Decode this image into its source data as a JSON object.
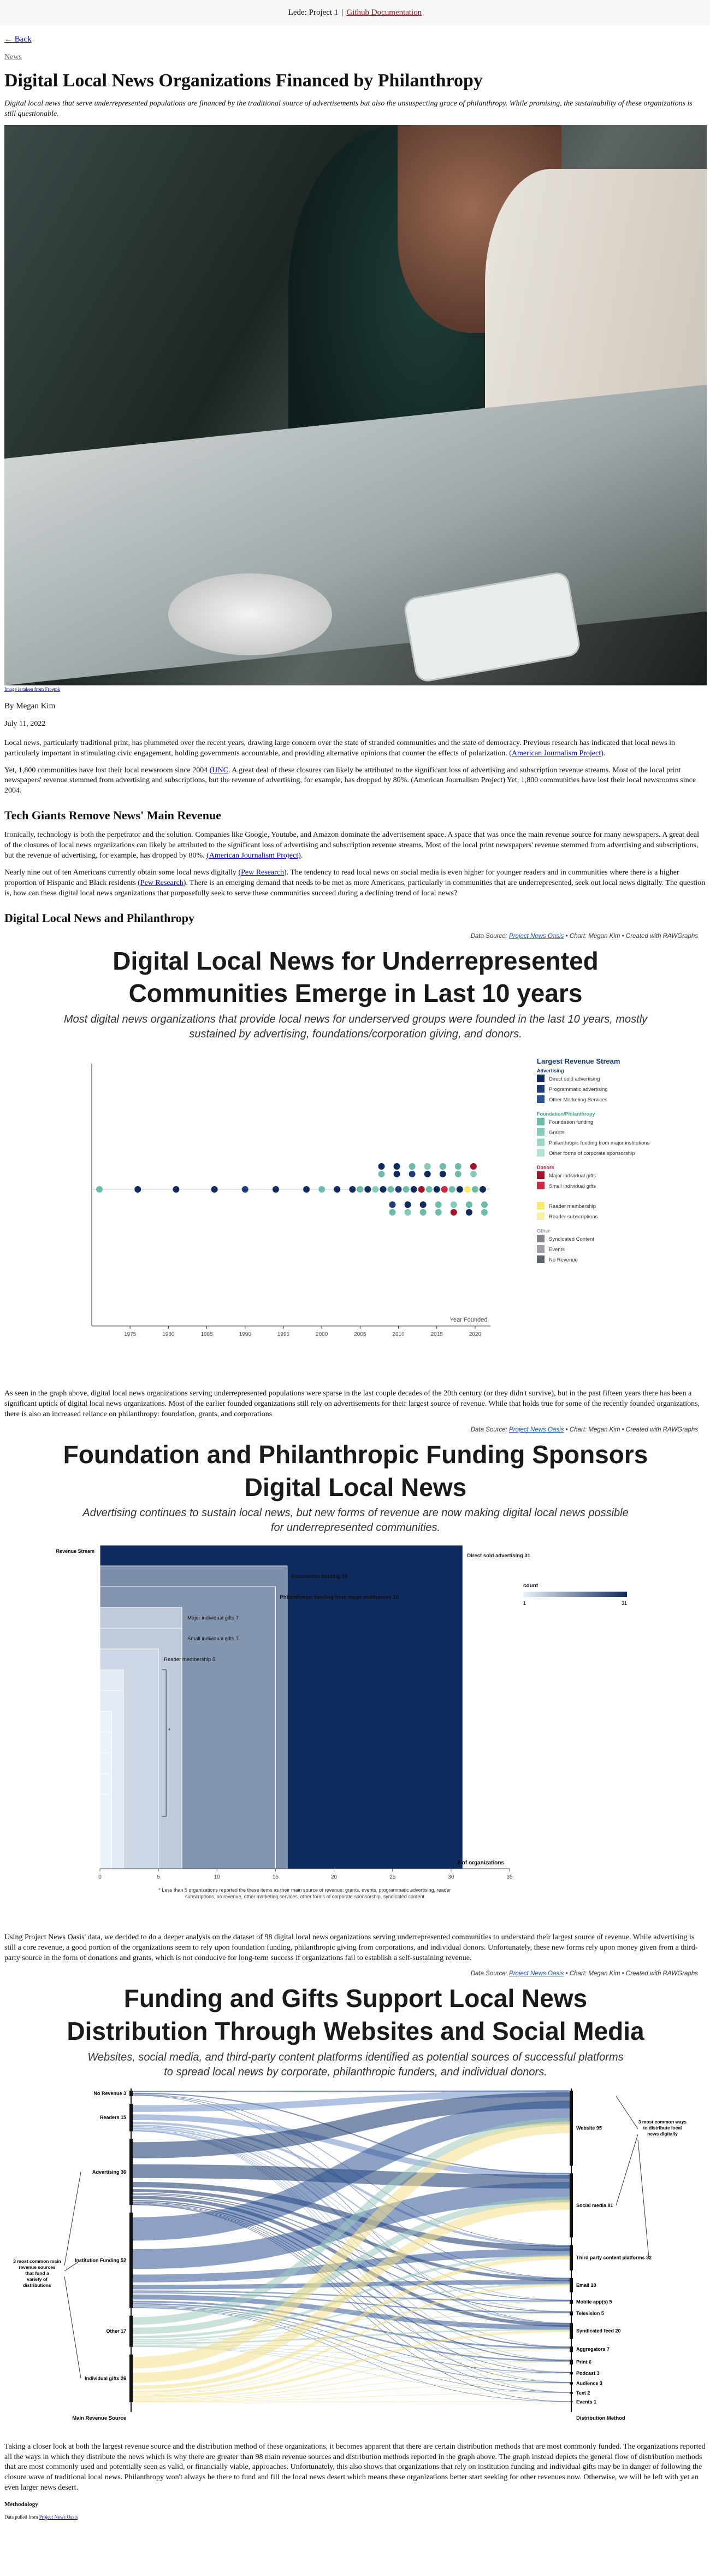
{
  "nav": {
    "brand": "Lede: Project 1",
    "separator": "|",
    "link": "Github Documentation"
  },
  "back": "← Back",
  "kicker": "News",
  "title": "Digital Local News Organizations Financed by Philanthropy",
  "dek": "Digital local news that serve underrepresented populations are financed by the traditional source of advertisements but also the unsuspecting grace of philanthropy. While promising, the sustainability of these organizations is still questionable.",
  "photo_credit": "Image is taken from Freepik",
  "byline": "By Megan Kim",
  "date": "July 11, 2022",
  "paragraphs": {
    "p1": "Local news, particularly traditional print, has plummeted over the recent years, drawing large concern over the state of stranded communities and the state of democracy. Previous research has indicated that local news in particularly important in stimulating civic engagement, holding governments accountable, and providing alternative opinions that counter the effects of polarization.",
    "p1_link": "(American Journalism Project)",
    "p2a": "Yet, 1,800 communities have lost their local newsroom since 2004",
    "p2_link": "(UNC",
    "p2b": ". A great deal of these closures can likely be attributed to the significant loss of advertising and subscription revenue streams. Most of the local print newspapers' revenue stemmed from advertising and subscriptions, but the revenue of advertising, for example, has dropped by 80%. (American Journalism Project) Yet, 1,800 communities have lost their local newsrooms since 2004.",
    "h_tech": "Tech Giants Remove News' Main Revenue",
    "p3": "Ironically, technology is both the perpetrator and the solution. Companies like Google, Youtube, and Amazon dominate the advertisement space. A space that was once the main revenue source for many newspapers. A great deal of the closures of local news organizations can likely be attributed to the significant loss of advertising and subscription revenue streams. Most of the local print newspapers' revenue stemmed from advertising and subscriptions, but the revenue of advertising, for example, has dropped by 80%.",
    "p3_link": "(American Journalism Project)",
    "p4a": "Nearly nine out of ten Americans currently obtain some local news digitally",
    "p4_link1": "(Pew Research",
    "p4b": "). The tendency to read local news on social media is even higher for younger readers and in communities where there is a higher proportion of Hispanic and Black residents",
    "p4_link2": "(Pew Research",
    "p4c": "). There is an emerging demand that needs to be met as more Americans, particularly in communities that are underrepresented, seek out local news digitally. The question is, how can these digital local news organizations that purposefully seek to serve these communities succeed during a declining trend of local news?",
    "h_digital": "Digital Local News and Philanthropy",
    "p5": "As seen in the graph above, digital local news organizations serving underrepresented populations were sparse in the last couple decades of the 20th century (or they didn't survive), but in the past fifteen years there has been a significant uptick of digital local news organizations. Most of the earlier founded organizations still rely on advertisements for their largest source of revenue. While that holds true for some of the recently founded organizations, there is also an increased reliance on philanthropy: foundation, grants, and corporations",
    "p6": "Using Project News Oasis' data, we decided to do a deeper analysis on the dataset of 98 digital local news organizations serving underrepresented communities to understand their largest source of revenue. While advertising is still a core revenue, a good portion of the organizations seem to rely upon foundation funding, philanthropic giving from corporations, and individual donors. Unfortunately, these new forms rely upon money given from a third-party source in the form of donations and grants, which is not conducive for long-term success if organizations fail to establish a self-sustaining revenue.",
    "p7": "Taking a closer look at both the largest revenue source and the distribution method of these organizations, it becomes apparent that there are certain distribution methods that are most commonly funded. The organizations reported all the ways in which they distribute the news which is why there are greater than 98 main revenue sources and distribution methods reported in the graph above. The graph instead depicts the general flow of distribution methods that are most commonly used and potentially seen as valid, or financially viable, approaches. Unfortunately, this also shows that organizations that rely on institution funding and individual gifts may be in danger of following the closure wave of traditional local news. Philanthropy won't always be there to fund and fill the local news desert which means these organizations better start seeking for other revenues now. Otherwise, we will be left with yet an even larger news desert.",
    "methodology": "Methodology",
    "methodology_note": "Data pulled from",
    "methodology_link": "Project News Oasis"
  },
  "source_line": {
    "prefix": "Data Source:",
    "link": "Project News Oasis",
    "suffix": "• Chart: Megan Kim • Created with RAWGraphs"
  },
  "colors": {
    "navy": "#14336b",
    "blue": "#3f6fb5",
    "teal": "#8fcfc0",
    "red": "#c0172f",
    "yellow": "#f6ec7a",
    "grey": "#9aa0a6"
  },
  "chart_data": [
    {
      "type": "scatter",
      "title": "Digital Local News for Underrepresented Communities Emerge in Last 10 years",
      "subtitle": "Most digital news organizations that provide local news for underserved groups were founded in the last 10 years, mostly sustained by advertising, foundations/corporation giving, and donors.",
      "xlabel": "Year Founded",
      "xlim": [
        1970,
        2022
      ],
      "x_ticks": [
        1975,
        1980,
        1985,
        1990,
        1995,
        2000,
        2005,
        2010,
        2015,
        2020
      ],
      "legend_title": "Largest Revenue Stream",
      "legend_groups": [
        {
          "name": "Advertising",
          "items": [
            {
              "label": "Direct sold advertising",
              "color": "#0f2a5c"
            },
            {
              "label": "Programmatic advertising",
              "color": "#1e3d7a"
            },
            {
              "label": "Other Marketing Services",
              "color": "#2d5394"
            }
          ]
        },
        {
          "name": "Foundation/Philanthropy",
          "items": [
            {
              "label": "Foundation funding",
              "color": "#6dbca9"
            },
            {
              "label": "Grants",
              "color": "#86cbb9"
            },
            {
              "label": "Philanthropic funding from major institutions",
              "color": "#9ed7c8"
            },
            {
              "label": "Other forms of corporate sponsorship",
              "color": "#b5e2d6"
            }
          ]
        },
        {
          "name": "Donors",
          "items": [
            {
              "label": "Major individual gifts",
              "color": "#a3142a"
            },
            {
              "label": "Small individual gifts",
              "color": "#c9283f"
            }
          ]
        },
        {
          "name": "",
          "items": [
            {
              "label": "Reader membership",
              "color": "#f5ea6c"
            },
            {
              "label": "Reader subscriptions",
              "color": "#f8f0a2"
            }
          ]
        },
        {
          "name": "Other",
          "items": [
            {
              "label": "Syndicated Content",
              "color": "#7d8389"
            },
            {
              "label": "Events",
              "color": "#9aa0a6"
            },
            {
              "label": "No Revenue",
              "color": "#5d636a"
            }
          ]
        }
      ],
      "points": [
        {
          "x": 1971,
          "g": "Foundation funding"
        },
        {
          "x": 1976,
          "g": "Direct sold advertising"
        },
        {
          "x": 1981,
          "g": "Direct sold advertising"
        },
        {
          "x": 1986,
          "g": "Direct sold advertising"
        },
        {
          "x": 1990,
          "g": "Programmatic advertising"
        },
        {
          "x": 1994,
          "g": "Direct sold advertising"
        },
        {
          "x": 1998,
          "g": "Direct sold advertising"
        },
        {
          "x": 2000,
          "g": "Foundation funding"
        },
        {
          "x": 2002,
          "g": "Direct sold advertising"
        },
        {
          "x": 2004,
          "g": "Direct sold advertising"
        },
        {
          "x": 2005,
          "g": "Foundation funding"
        },
        {
          "x": 2006,
          "g": "Direct sold advertising"
        },
        {
          "x": 2007,
          "g": "Grants"
        },
        {
          "x": 2008,
          "g": "Direct sold advertising"
        },
        {
          "x": 2009,
          "g": "Foundation funding"
        },
        {
          "x": 2010,
          "g": "Programmatic advertising"
        },
        {
          "x": 2011,
          "g": "Foundation funding"
        },
        {
          "x": 2012,
          "g": "Direct sold advertising"
        },
        {
          "x": 2013,
          "g": "Major individual gifts"
        },
        {
          "x": 2014,
          "g": "Foundation funding"
        },
        {
          "x": 2015,
          "g": "Direct sold advertising"
        },
        {
          "x": 2016,
          "g": "Small individual gifts"
        },
        {
          "x": 2017,
          "g": "Foundation funding"
        },
        {
          "x": 2018,
          "g": "Direct sold advertising"
        },
        {
          "x": 2019,
          "g": "Reader membership"
        },
        {
          "x": 2020,
          "g": "Foundation funding"
        },
        {
          "x": 2021,
          "g": "Direct sold advertising"
        }
      ]
    },
    {
      "type": "bar",
      "title": "Foundation and Philanthropic Funding Sponsors Digital Local News",
      "subtitle": "Advertising continues to sustain local news, but new forms of revenue are now making digital local news possible for underrepresented communities.",
      "axis_label": "Revenue Stream",
      "xlabel": "# of organizations",
      "xlim": [
        0,
        35
      ],
      "x_ticks": [
        0,
        5,
        10,
        15,
        20,
        25,
        30,
        35
      ],
      "legend_title": "count",
      "legend_range": [
        1,
        31
      ],
      "categories": [
        "Direct sold advertising",
        "Foundation funding",
        "Philanthropic funding from major institutions",
        "Major individual gifts",
        "Small individual gifts",
        "Reader membership",
        "",
        "",
        "",
        "",
        "",
        "",
        ""
      ],
      "values": [
        31,
        16,
        15,
        7,
        7,
        5,
        2,
        2,
        1,
        1,
        1,
        1,
        1
      ],
      "note": "* Less than 5 organizations reported the these items as their main source of revenue: grants, events, programmatic advertising, reader subscriptions, no revenue, other marketing services, other forms of corporate sponsorship, syndicated content"
    },
    {
      "type": "sankey",
      "title": "Funding and Gifts Support Local News Distribution Through Websites and Social Media",
      "subtitle": "Websites, social media, and third-party content platforms identified as potential sources of successful platforms to spread local news by corporate, philanthropic funders, and individual donors.",
      "left_axis": "Main Revenue Source",
      "right_axis": "Distribution Method",
      "sources": [
        {
          "name": "No Revenue",
          "value": 3
        },
        {
          "name": "Readers",
          "value": 15
        },
        {
          "name": "Advertising",
          "value": 36
        },
        {
          "name": "Institution Funding",
          "value": 52
        },
        {
          "name": "Other",
          "value": 17
        },
        {
          "name": "Individual gifts",
          "value": 26
        }
      ],
      "targets": [
        {
          "name": "Website",
          "value": 95
        },
        {
          "name": "Social media",
          "value": 81
        },
        {
          "name": "Third party content platforms",
          "value": 32
        },
        {
          "name": "Email",
          "value": 18
        },
        {
          "name": "Mobile app(s)",
          "value": 5
        },
        {
          "name": "Television",
          "value": 5
        },
        {
          "name": "Syndicated feed",
          "value": 20
        },
        {
          "name": "Aggregators",
          "value": 7
        },
        {
          "name": "Print",
          "value": 6
        },
        {
          "name": "Podcast",
          "value": 3
        },
        {
          "name": "Audience",
          "value": 3
        },
        {
          "name": "Text",
          "value": 2
        },
        {
          "name": "Events",
          "value": 1
        }
      ],
      "left_annotation": "3 most common main revenue sources that fund a variety of distributions",
      "right_annotation": "3 most common ways to distribute local news digitally"
    }
  ]
}
